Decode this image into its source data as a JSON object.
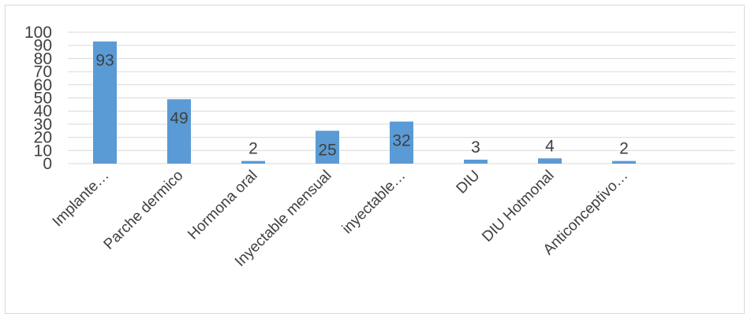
{
  "chart_data": {
    "type": "bar",
    "categories": [
      "Implante…",
      "Parche dermico",
      "Hormona oral",
      "Inyectable mensual",
      "inyectable…",
      "DIU",
      "DIU Hotmonal",
      "Anticonceptivo…",
      ""
    ],
    "values": [
      93,
      49,
      2,
      25,
      32,
      3,
      4,
      2,
      null
    ],
    "data_labels": [
      "93",
      "49",
      "2",
      "25",
      "32",
      "3",
      "4",
      "2",
      ""
    ],
    "yticks": [
      "0",
      "10",
      "20",
      "30",
      "40",
      "50",
      "60",
      "70",
      "80",
      "90",
      "100"
    ],
    "ylim": [
      0,
      100
    ],
    "grid": true,
    "legend": "none",
    "colors": {
      "bar": "#5b9bd5",
      "grid": "#d9d9d9",
      "text": "#404040"
    }
  }
}
